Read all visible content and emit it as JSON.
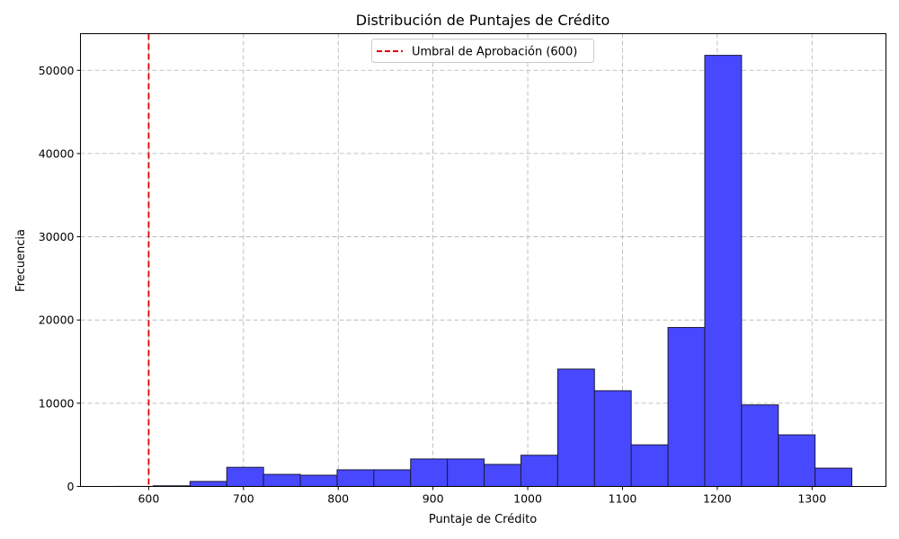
{
  "chart_data": {
    "type": "bar",
    "title": "Distribución de Puntajes de Crédito",
    "xlabel": "Puntaje de Crédito",
    "ylabel": "Frecuencia",
    "xlim": [
      528,
      1378
    ],
    "ylim": [
      0,
      54400
    ],
    "xticks": [
      600,
      700,
      800,
      900,
      1000,
      1100,
      1200,
      1300
    ],
    "yticks": [
      0,
      10000,
      20000,
      30000,
      40000,
      50000
    ],
    "bin_width": 38.8,
    "bins": [
      {
        "start": 566.0,
        "count": 5
      },
      {
        "start": 604.8,
        "count": 80
      },
      {
        "start": 643.6,
        "count": 600
      },
      {
        "start": 682.4,
        "count": 2300
      },
      {
        "start": 721.2,
        "count": 1450
      },
      {
        "start": 760.0,
        "count": 1350
      },
      {
        "start": 798.8,
        "count": 2000
      },
      {
        "start": 837.6,
        "count": 2000
      },
      {
        "start": 876.4,
        "count": 3300
      },
      {
        "start": 915.2,
        "count": 3300
      },
      {
        "start": 954.0,
        "count": 2650
      },
      {
        "start": 992.8,
        "count": 3750
      },
      {
        "start": 1031.6,
        "count": 14100
      },
      {
        "start": 1070.4,
        "count": 11500
      },
      {
        "start": 1109.2,
        "count": 5000
      },
      {
        "start": 1148.0,
        "count": 19100
      },
      {
        "start": 1186.8,
        "count": 51800
      },
      {
        "start": 1225.6,
        "count": 9800
      },
      {
        "start": 1264.4,
        "count": 6200
      },
      {
        "start": 1303.2,
        "count": 2200
      }
    ],
    "bar_color": "#4848FF",
    "bar_edge_color": "#1a1a3a",
    "threshold": {
      "x": 600,
      "label": "Umbral de Aprobación (600)",
      "color": "#DD0000",
      "style": "dashed"
    },
    "grid": true,
    "legend_position": "top-center"
  }
}
